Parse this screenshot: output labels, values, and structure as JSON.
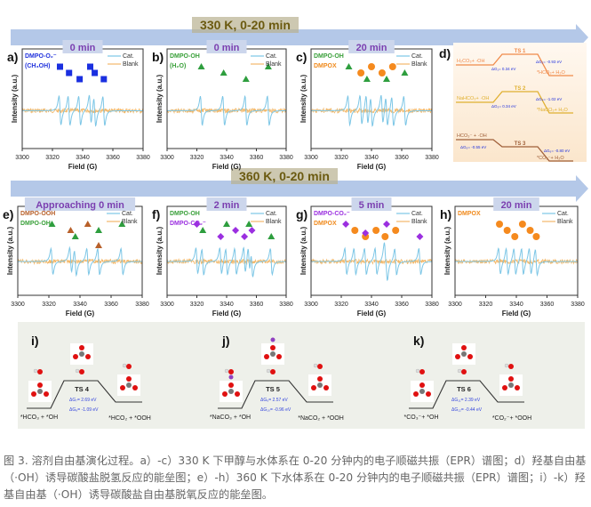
{
  "figure": {
    "arrow_top_label": "330 K, 0-20 min",
    "arrow_bottom_label": "360 K, 0-20 min",
    "xlabel": "Field (G)",
    "ylabel": "Intensity (a.u.)",
    "xticks": [
      "3300",
      "3320",
      "3340",
      "3360",
      "3380"
    ],
    "legend_cat": "Cat.",
    "legend_blank": "Blank",
    "colors": {
      "cat": "#7cc6e6",
      "blank": "#f2b86a",
      "arrow": "#b4c8e8",
      "time_label": "#7b3fb0",
      "arrow_text": "#6b5a10",
      "arrow_text_bg": "#b8b090"
    }
  },
  "epr_panels": [
    {
      "letter": "a)",
      "time": "0 min",
      "legend": [
        {
          "text": "DMPO-O₂⁻",
          "color": "#2233dd"
        },
        {
          "text": "(CH₃OH)",
          "color": "#2233dd"
        }
      ],
      "markers": [
        {
          "shape": "square",
          "color": "#1a2fe0",
          "field": 3325
        },
        {
          "shape": "square",
          "color": "#1a2fe0",
          "field": 3331
        },
        {
          "shape": "square",
          "color": "#1a2fe0",
          "field": 3338
        },
        {
          "shape": "square",
          "color": "#1a2fe0",
          "field": 3345
        },
        {
          "shape": "square",
          "color": "#1a2fe0",
          "field": 3348
        },
        {
          "shape": "square",
          "color": "#1a2fe0",
          "field": 3354
        }
      ]
    },
    {
      "letter": "b)",
      "time": "0 min",
      "legend": [
        {
          "text": "DMPO-OH",
          "color": "#3aa03a"
        },
        {
          "text": "(H₂O)",
          "color": "#3aa03a"
        }
      ],
      "markers": [
        {
          "shape": "triangle",
          "color": "#2e9e3e",
          "field": 3323
        },
        {
          "shape": "triangle",
          "color": "#2e9e3e",
          "field": 3338
        },
        {
          "shape": "triangle",
          "color": "#2e9e3e",
          "field": 3353
        },
        {
          "shape": "triangle",
          "color": "#2e9e3e",
          "field": 3368
        }
      ]
    },
    {
      "letter": "c)",
      "time": "20 min",
      "legend": [
        {
          "text": "DMPO-OH",
          "color": "#3aa03a"
        },
        {
          "text": "DMPOX",
          "color": "#f08a1c"
        }
      ],
      "markers": [
        {
          "shape": "triangle",
          "color": "#2e9e3e",
          "field": 3325
        },
        {
          "shape": "circle",
          "color": "#f58a1e",
          "field": 3333
        },
        {
          "shape": "triangle",
          "color": "#2e9e3e",
          "field": 3337
        },
        {
          "shape": "circle",
          "color": "#f58a1e",
          "field": 3340
        },
        {
          "shape": "circle",
          "color": "#f58a1e",
          "field": 3347
        },
        {
          "shape": "triangle",
          "color": "#2e9e3e",
          "field": 3350
        },
        {
          "shape": "circle",
          "color": "#f58a1e",
          "field": 3354
        },
        {
          "shape": "triangle",
          "color": "#2e9e3e",
          "field": 3362
        }
      ]
    },
    {
      "letter": "e)",
      "time": "Approaching 0 min",
      "legend": [
        {
          "text": "DMPO-OOH",
          "color": "#b8602a"
        },
        {
          "text": "DMPO-OH",
          "color": "#3aa03a"
        }
      ],
      "markers": [
        {
          "shape": "triangle",
          "color": "#2e9e3e",
          "field": 3322
        },
        {
          "shape": "triangle",
          "color": "#b8602a",
          "field": 3334
        },
        {
          "shape": "triangle",
          "color": "#2e9e3e",
          "field": 3337
        },
        {
          "shape": "triangle",
          "color": "#b8602a",
          "field": 3345
        },
        {
          "shape": "triangle",
          "color": "#2e9e3e",
          "field": 3352
        },
        {
          "shape": "triangle",
          "color": "#b8602a",
          "field": 3352
        },
        {
          "shape": "triangle",
          "color": "#2e9e3e",
          "field": 3367
        }
      ]
    },
    {
      "letter": "f)",
      "time": "2 min",
      "legend": [
        {
          "text": "DMPO-OH",
          "color": "#3aa03a"
        },
        {
          "text": "DMPO-CO₂⁻",
          "color": "#9b2fe0"
        }
      ],
      "markers": [
        {
          "shape": "diamond",
          "color": "#9b2fe0",
          "field": 3320
        },
        {
          "shape": "triangle",
          "color": "#2e9e3e",
          "field": 3324
        },
        {
          "shape": "diamond",
          "color": "#9b2fe0",
          "field": 3336
        },
        {
          "shape": "triangle",
          "color": "#2e9e3e",
          "field": 3340
        },
        {
          "shape": "diamond",
          "color": "#9b2fe0",
          "field": 3346
        },
        {
          "shape": "diamond",
          "color": "#9b2fe0",
          "field": 3352
        },
        {
          "shape": "triangle",
          "color": "#2e9e3e",
          "field": 3355
        },
        {
          "shape": "diamond",
          "color": "#9b2fe0",
          "field": 3357
        },
        {
          "shape": "triangle",
          "color": "#2e9e3e",
          "field": 3370
        }
      ]
    },
    {
      "letter": "g)",
      "time": "5 min",
      "legend": [
        {
          "text": "DMPO-CO₂⁻",
          "color": "#9b2fe0"
        },
        {
          "text": "DMPOX",
          "color": "#f08a1c"
        }
      ],
      "markers": [
        {
          "shape": "diamond",
          "color": "#9b2fe0",
          "field": 3323
        },
        {
          "shape": "circle",
          "color": "#f58a1e",
          "field": 3329
        },
        {
          "shape": "circle",
          "color": "#f58a1e",
          "field": 3336
        },
        {
          "shape": "diamond",
          "color": "#9b2fe0",
          "field": 3336
        },
        {
          "shape": "circle",
          "color": "#f58a1e",
          "field": 3343
        },
        {
          "shape": "circle",
          "color": "#f58a1e",
          "field": 3349
        },
        {
          "shape": "diamond",
          "color": "#9b2fe0",
          "field": 3350
        },
        {
          "shape": "circle",
          "color": "#f58a1e",
          "field": 3356
        },
        {
          "shape": "diamond",
          "color": "#9b2fe0",
          "field": 3372
        }
      ]
    },
    {
      "letter": "h)",
      "time": "20 min",
      "legend": [
        {
          "text": "DMPOX",
          "color": "#f08a1c"
        }
      ],
      "markers": [
        {
          "shape": "circle",
          "color": "#f58a1e",
          "field": 3329
        },
        {
          "shape": "circle",
          "color": "#f58a1e",
          "field": 3334
        },
        {
          "shape": "circle",
          "color": "#f58a1e",
          "field": 3339
        },
        {
          "shape": "circle",
          "color": "#f58a1e",
          "field": 3344
        },
        {
          "shape": "circle",
          "color": "#f58a1e",
          "field": 3349
        },
        {
          "shape": "circle",
          "color": "#f58a1e",
          "field": 3353
        }
      ]
    }
  ],
  "panel_d": {
    "letter": "d)",
    "paths": [
      {
        "color": "#f08a4a",
        "start": "H₂CO₃+ ·OH",
        "ts": "TS 1",
        "dg_up": "ΔG₁= 0.34 eV",
        "dg_down": "ΔG₂= -0.93 eV",
        "end": "*HCO₃+ H₂O"
      },
      {
        "color": "#e0b030",
        "start": "NaHCO₃+ ·OH",
        "ts": "TS 2",
        "dg_up": "ΔG₃= 0.34 eV",
        "dg_down": "ΔG₄= -1.02 eV",
        "end": "*NaCO₃+ H₂O"
      },
      {
        "color": "#a0603a",
        "start": "HCO₃⁻ + ·OH",
        "ts": "TS 3",
        "dg_up": "ΔG₅= -0.55 eV",
        "dg_down": "ΔG₆= -0.80 eV",
        "end": "*CO₃⁻+ H₂O"
      }
    ]
  },
  "energy_panels": [
    {
      "letter": "i)",
      "start": "*HCO₃ + *OH",
      "ts": "TS 4",
      "dg1": "ΔG₇= 2.69 eV",
      "dg2": "ΔG₈= -1.09 eV",
      "end": "*HCO₂ + *OOH",
      "na": false
    },
    {
      "letter": "j)",
      "start": "*NaCO₃ + *OH",
      "ts": "TS 5",
      "dg1": "ΔG₉= 2.57 eV",
      "dg2": "ΔG₁₀= -0.96 eV",
      "end": "*NaCO₂ + *OOH",
      "na": true
    },
    {
      "letter": "k)",
      "start": "*CO₃⁻+ *OH",
      "ts": "TS 6",
      "dg1": "ΔG₁₁= 2.39 eV",
      "dg2": "ΔG₁₂= -0.44 eV",
      "end": "*CO₂⁻+ *OOH",
      "na": false
    }
  ],
  "caption": "图 3. 溶剂自由基演化过程。a）-c）330 K 下甲醇与水体系在 0-20 分钟内的电子顺磁共振（EPR）谱图；d）羟基自由基（·OH）诱导碳酸盐脱氢反应的能垒图；e）-h）360 K 下水体系在 0-20 分钟内的电子顺磁共振（EPR）谱图；i）-k）羟基自由基（·OH）诱导碳酸盐自由基脱氧反应的能垒图。"
}
